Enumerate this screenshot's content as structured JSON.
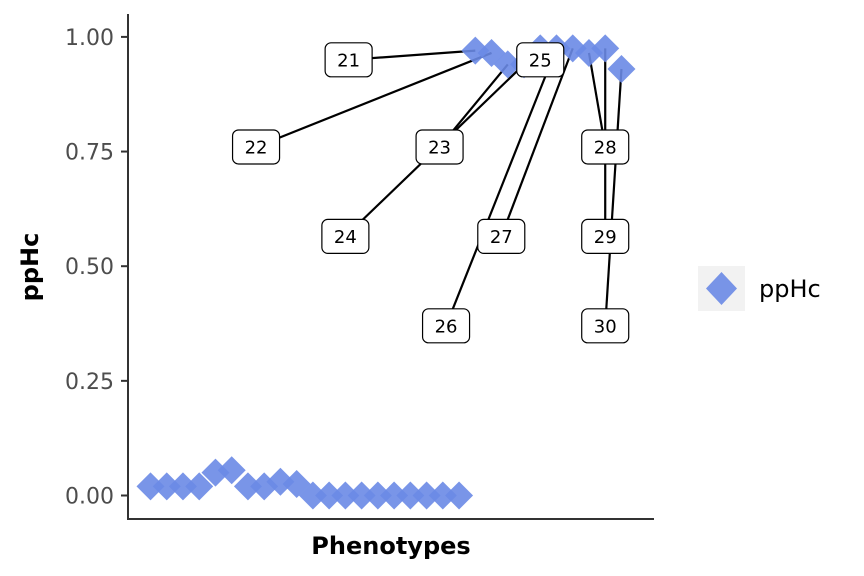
{
  "chart_data": {
    "type": "scatter",
    "xlabel": "Phenotypes",
    "ylabel": "ppHc",
    "ylim": [
      -0.05,
      1.05
    ],
    "yticks": [
      "0.00",
      "0.25",
      "0.50",
      "0.75",
      "1.00"
    ],
    "grid": false,
    "legend_position": "right",
    "marker": "diamond",
    "color": "#6a8ae6",
    "series": [
      {
        "name": "ppHc",
        "x": [
          1,
          2,
          3,
          4,
          5,
          6,
          7,
          8,
          9,
          10,
          11,
          12,
          13,
          14,
          15,
          16,
          17,
          18,
          19,
          20,
          21,
          22,
          23,
          24,
          25,
          26,
          27,
          28,
          29,
          30
        ],
        "values": [
          0.02,
          0.02,
          0.02,
          0.02,
          0.05,
          0.055,
          0.02,
          0.02,
          0.03,
          0.025,
          0.0,
          0.0,
          0.0,
          0.0,
          0.0,
          0.0,
          0.0,
          0.0,
          0.0,
          0.0,
          0.97,
          0.965,
          0.94,
          0.94,
          0.975,
          0.975,
          0.975,
          0.965,
          0.975,
          0.93
        ]
      }
    ],
    "annotations": [
      {
        "label": "21",
        "x": 21,
        "y": 0.97,
        "lx": 13.2,
        "ly": 0.95
      },
      {
        "label": "22",
        "x": 22,
        "y": 0.965,
        "lx": 7.5,
        "ly": 0.76
      },
      {
        "label": "23",
        "x": 23,
        "y": 0.94,
        "lx": 18.8,
        "ly": 0.76
      },
      {
        "label": "24",
        "x": 24,
        "y": 0.94,
        "lx": 13.0,
        "ly": 0.565
      },
      {
        "label": "25",
        "x": 25,
        "y": 0.975,
        "lx": 25.0,
        "ly": 0.95
      },
      {
        "label": "26",
        "x": 26,
        "y": 0.975,
        "lx": 19.2,
        "ly": 0.37
      },
      {
        "label": "27",
        "x": 27,
        "y": 0.975,
        "lx": 22.6,
        "ly": 0.565
      },
      {
        "label": "28",
        "x": 28,
        "y": 0.965,
        "lx": 29.0,
        "ly": 0.76
      },
      {
        "label": "29",
        "x": 29,
        "y": 0.975,
        "lx": 29.0,
        "ly": 0.565
      },
      {
        "label": "30",
        "x": 30,
        "y": 0.93,
        "lx": 29.0,
        "ly": 0.37
      }
    ]
  }
}
